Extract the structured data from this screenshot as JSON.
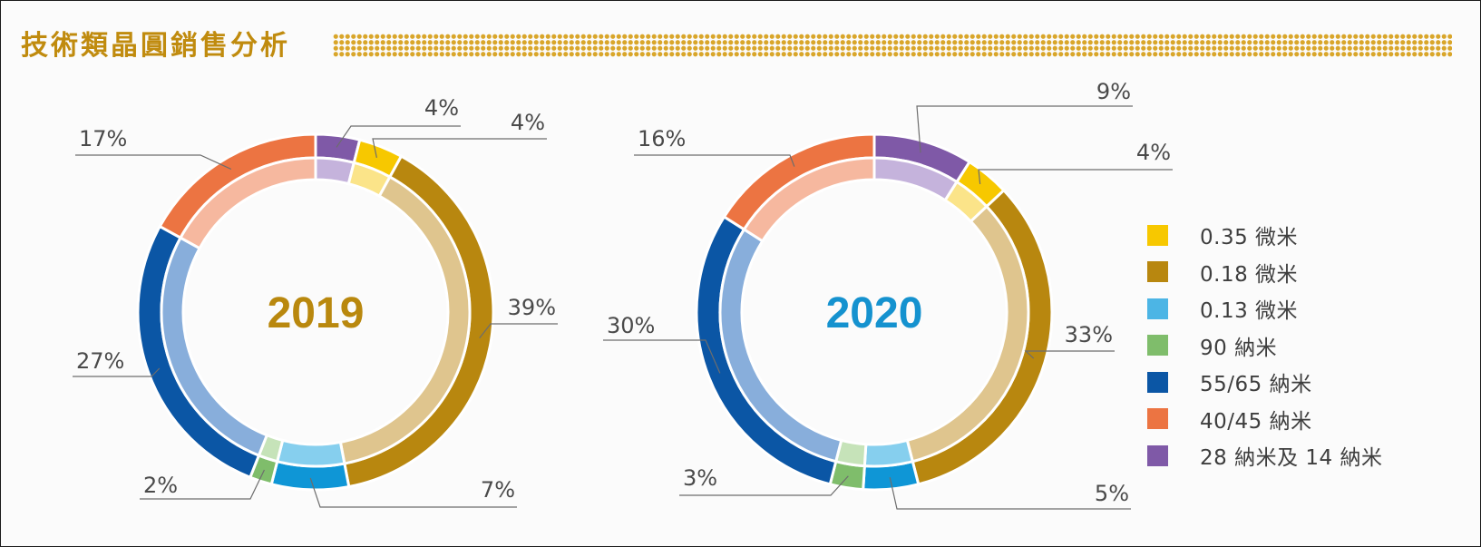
{
  "title": "技術類晶圓銷售分析",
  "colors": {
    "title": "#c08b0e",
    "dots": "#d9a62a"
  },
  "chart_data": [
    {
      "type": "pie",
      "variant": "donut",
      "center_label": "2019",
      "center_label_color": "#b9880e",
      "categories": [
        "28 納米及 14 納米",
        "0.35 微米",
        "0.18 微米",
        "0.13 微米",
        "90 納米",
        "55/65 納米",
        "40/45 納米"
      ],
      "values": [
        4,
        4,
        39,
        7,
        2,
        27,
        17
      ],
      "data_labels": [
        "4%",
        "4%",
        "39%",
        "7%",
        "2%",
        "27%",
        "17%"
      ],
      "start": "12 o'clock",
      "direction": "clockwise"
    },
    {
      "type": "pie",
      "variant": "donut",
      "center_label": "2020",
      "center_label_color": "#1592cf",
      "categories": [
        "28 納米及 14 納米",
        "0.35 微米",
        "0.18 微米",
        "0.13 微米",
        "90 納米",
        "55/65 納米",
        "40/45 納米"
      ],
      "values": [
        9,
        4,
        33,
        5,
        3,
        30,
        16
      ],
      "data_labels": [
        "9%",
        "4%",
        "33%",
        "5%",
        "3%",
        "30%",
        "16%"
      ],
      "start": "12 o'clock",
      "direction": "clockwise"
    }
  ],
  "legend": [
    {
      "label": "0.35 微米",
      "color": "#f7c800"
    },
    {
      "label": "0.18 微米",
      "color": "#b8870f"
    },
    {
      "label": "0.13 微米",
      "color": "#4cb5e5"
    },
    {
      "label": "90 納米",
      "color": "#7fbd6b"
    },
    {
      "label": "55/65 納米",
      "color": "#0b56a5"
    },
    {
      "label": "40/45 納米",
      "color": "#ec7442"
    },
    {
      "label": "28 納米及 14 納米",
      "color": "#7f59a7"
    }
  ],
  "segment_colors": {
    "28 納米及 14 納米": {
      "outer": "#7f59a7",
      "inner": "#c5b3dc"
    },
    "0.35 微米": {
      "outer": "#f7c800",
      "inner": "#fbe489"
    },
    "0.18 微米": {
      "outer": "#b8870f",
      "inner": "#dfc58e"
    },
    "0.13 微米": {
      "outer": "#0f96d6",
      "inner": "#86cfee"
    },
    "90 納米": {
      "outer": "#7fbd6b",
      "inner": "#c6e3b9"
    },
    "55/65 納米": {
      "outer": "#0b56a5",
      "inner": "#88aedb"
    },
    "40/45 納米": {
      "outer": "#ec7442",
      "inner": "#f6b89f"
    }
  }
}
